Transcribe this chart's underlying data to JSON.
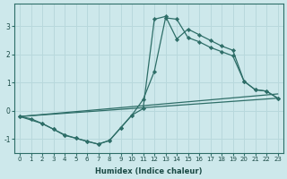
{
  "xlabel": "Humidex (Indice chaleur)",
  "background_color": "#cde8eb",
  "grid_color": "#b8d8dc",
  "line_color": "#2e6e68",
  "xlim": [
    -0.5,
    23.5
  ],
  "ylim": [
    -1.5,
    3.8
  ],
  "yticks": [
    -1,
    0,
    1,
    2,
    3
  ],
  "xticks": [
    0,
    1,
    2,
    3,
    4,
    5,
    6,
    7,
    8,
    9,
    10,
    11,
    12,
    13,
    14,
    15,
    16,
    17,
    18,
    19,
    20,
    21,
    22,
    23
  ],
  "line1_x": [
    0,
    23
  ],
  "line1_y": [
    -0.2,
    0.45
  ],
  "line2_x": [
    0,
    23
  ],
  "line2_y": [
    -0.2,
    0.6
  ],
  "jagged1_x": [
    0,
    1,
    2,
    3,
    4,
    5,
    6,
    7,
    8,
    9,
    10,
    11,
    12,
    13,
    14,
    15,
    16,
    17,
    18,
    19,
    20,
    21,
    22,
    23
  ],
  "jagged1_y": [
    -0.2,
    -0.28,
    -0.45,
    -0.65,
    -0.85,
    -0.97,
    -1.08,
    -1.18,
    -1.05,
    -0.6,
    -0.15,
    0.4,
    1.4,
    3.3,
    3.25,
    2.6,
    2.45,
    2.25,
    2.1,
    1.95,
    1.05,
    0.75,
    0.7,
    0.45
  ],
  "jagged2_x": [
    0,
    2,
    3,
    4,
    5,
    6,
    7,
    8,
    9,
    10,
    11,
    12,
    13,
    14,
    15,
    16,
    17,
    18,
    19,
    20,
    21,
    22,
    23
  ],
  "jagged2_y": [
    -0.2,
    -0.45,
    -0.65,
    -0.87,
    -0.97,
    -1.08,
    -1.18,
    -1.05,
    -0.6,
    -0.15,
    0.08,
    3.25,
    3.35,
    2.55,
    2.9,
    2.7,
    2.5,
    2.3,
    2.15,
    1.05,
    0.75,
    0.7,
    0.45
  ]
}
